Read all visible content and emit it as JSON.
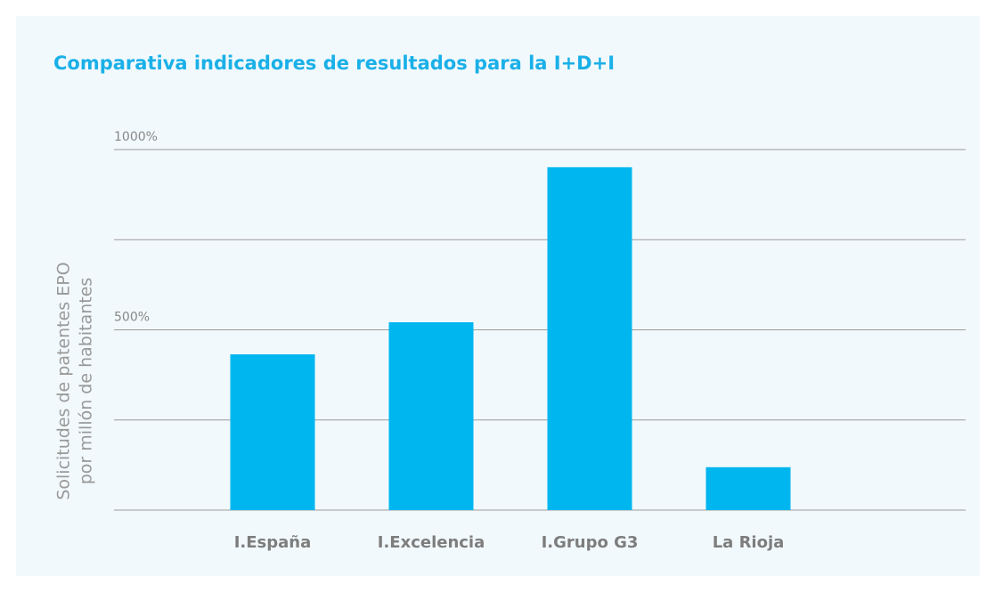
{
  "chart_data": {
    "type": "bar",
    "title": "Comparativa indicadores de resultados para la I+D+I",
    "ylabel": [
      "Solicitudes de patentes EPO",
      "por millón de habitantes"
    ],
    "categories": [
      "I.España",
      "I.Excelencia",
      "I.Grupo G3",
      "La Rioja"
    ],
    "values": [
      432,
      521,
      951,
      119
    ],
    "color": "#00b6ef",
    "ylim": [
      0,
      1000
    ],
    "yticks": [
      {
        "value": 500,
        "label": "500%"
      },
      {
        "value": 1000,
        "label": "1000%"
      }
    ],
    "minor_yticks": [
      0,
      250,
      750
    ],
    "grid": true
  }
}
